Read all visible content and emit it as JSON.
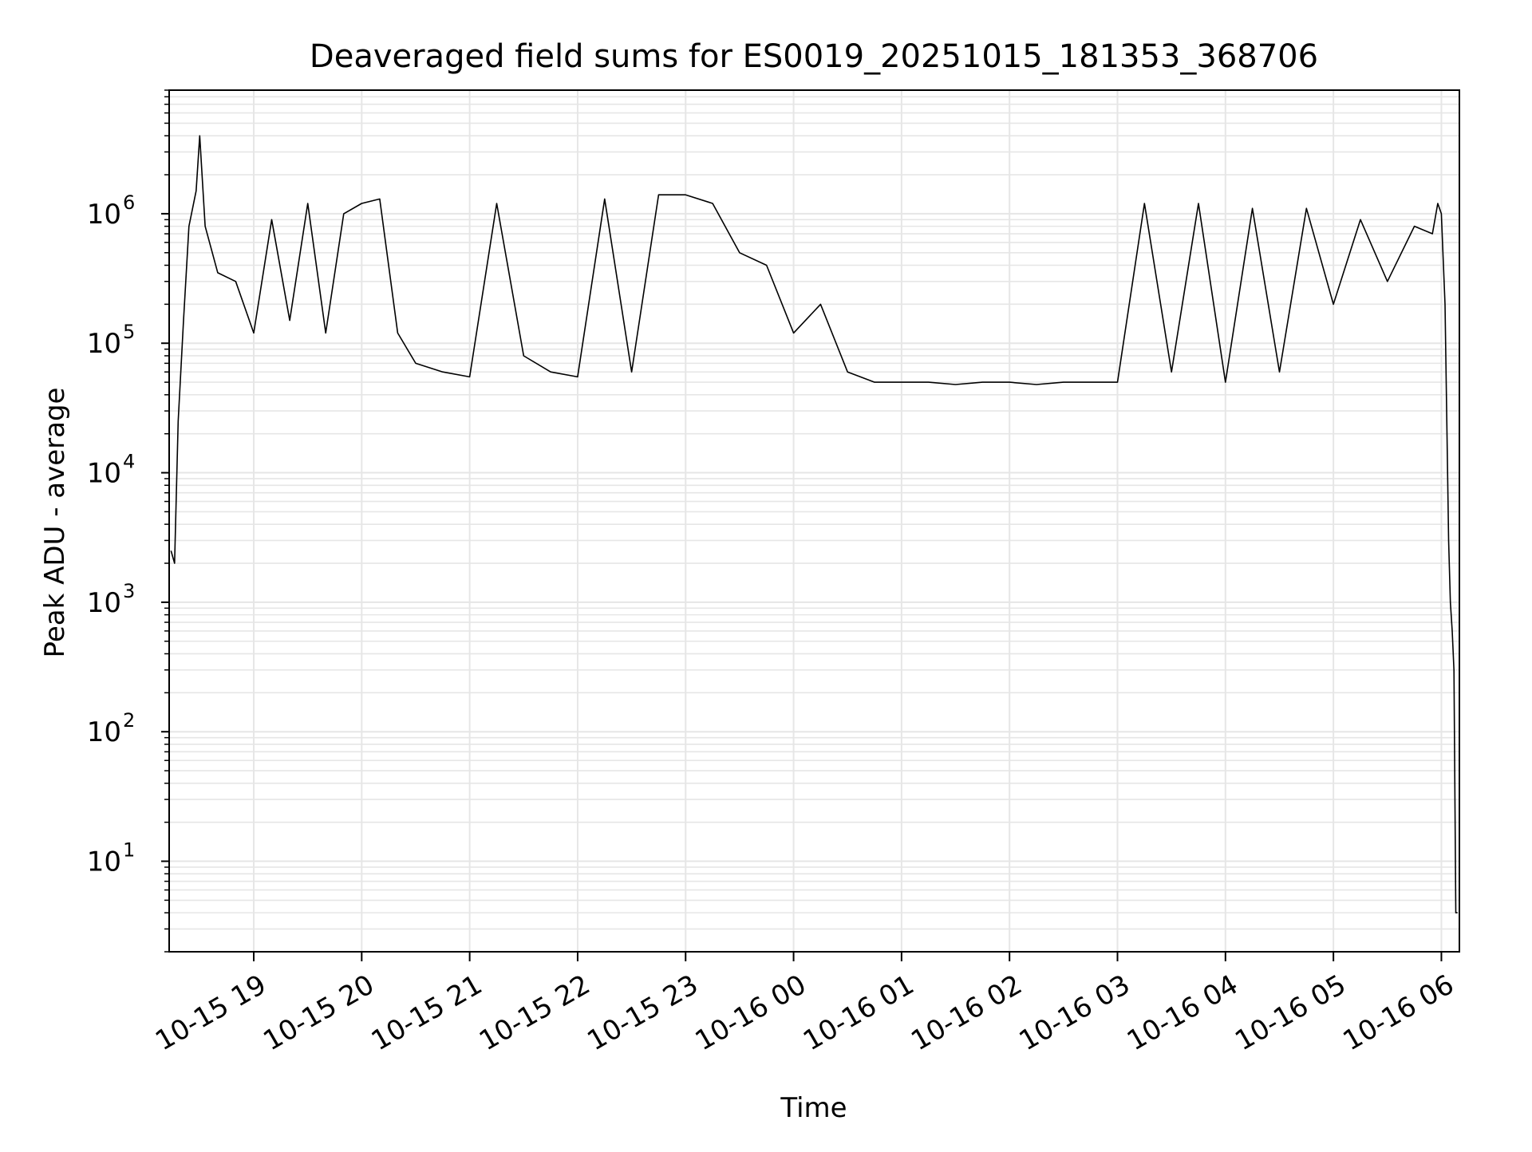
{
  "chart_data": {
    "type": "line",
    "title": "Deaveraged field sums for ES0019_20251015_181353_368706",
    "xlabel": "Time",
    "ylabel": "Peak ADU - average",
    "yscale": "log",
    "grid": true,
    "legend": "none",
    "colors": {
      "line": "#000000",
      "grid": "#e6e6e6",
      "axes": "#000000"
    },
    "xlim": [
      "2025-10-15 18:13",
      "2025-10-16 06:10"
    ],
    "ylim": [
      2,
      9000000
    ],
    "x_ticks": [
      {
        "t": "2025-10-15 19:00",
        "label": "10-15 19"
      },
      {
        "t": "2025-10-15 20:00",
        "label": "10-15 20"
      },
      {
        "t": "2025-10-15 21:00",
        "label": "10-15 21"
      },
      {
        "t": "2025-10-15 22:00",
        "label": "10-15 22"
      },
      {
        "t": "2025-10-15 23:00",
        "label": "10-15 23"
      },
      {
        "t": "2025-10-16 00:00",
        "label": "10-16 00"
      },
      {
        "t": "2025-10-16 01:00",
        "label": "10-16 01"
      },
      {
        "t": "2025-10-16 02:00",
        "label": "10-16 02"
      },
      {
        "t": "2025-10-16 03:00",
        "label": "10-16 03"
      },
      {
        "t": "2025-10-16 04:00",
        "label": "10-16 04"
      },
      {
        "t": "2025-10-16 05:00",
        "label": "10-16 05"
      },
      {
        "t": "2025-10-16 06:00",
        "label": "10-16 06"
      }
    ],
    "y_ticks": [
      {
        "v": 10,
        "label": "10",
        "exp": "1"
      },
      {
        "v": 100,
        "label": "10",
        "exp": "2"
      },
      {
        "v": 1000,
        "label": "10",
        "exp": "3"
      },
      {
        "v": 10000,
        "label": "10",
        "exp": "4"
      },
      {
        "v": 100000,
        "label": "10",
        "exp": "5"
      },
      {
        "v": 1000000,
        "label": "10",
        "exp": "6"
      }
    ],
    "series": [
      {
        "x": [
          "2025-10-15 18:14",
          "2025-10-15 18:16",
          "2025-10-15 18:18",
          "2025-10-15 18:21",
          "2025-10-15 18:24",
          "2025-10-15 18:28",
          "2025-10-15 18:30",
          "2025-10-15 18:33",
          "2025-10-15 18:40",
          "2025-10-15 18:50",
          "2025-10-15 19:00",
          "2025-10-15 19:10",
          "2025-10-15 19:20",
          "2025-10-15 19:30",
          "2025-10-15 19:40",
          "2025-10-15 19:50",
          "2025-10-15 20:00",
          "2025-10-15 20:10",
          "2025-10-15 20:20",
          "2025-10-15 20:30",
          "2025-10-15 20:45",
          "2025-10-15 21:00",
          "2025-10-15 21:15",
          "2025-10-15 21:30",
          "2025-10-15 21:45",
          "2025-10-15 22:00",
          "2025-10-15 22:15",
          "2025-10-15 22:30",
          "2025-10-15 22:45",
          "2025-10-15 23:00",
          "2025-10-15 23:15",
          "2025-10-15 23:30",
          "2025-10-15 23:45",
          "2025-10-16 00:00",
          "2025-10-16 00:15",
          "2025-10-16 00:30",
          "2025-10-16 00:45",
          "2025-10-16 01:00",
          "2025-10-16 01:15",
          "2025-10-16 01:30",
          "2025-10-16 01:45",
          "2025-10-16 02:00",
          "2025-10-16 02:15",
          "2025-10-16 02:30",
          "2025-10-16 02:45",
          "2025-10-16 03:00",
          "2025-10-16 03:15",
          "2025-10-16 03:30",
          "2025-10-16 03:45",
          "2025-10-16 04:00",
          "2025-10-16 04:15",
          "2025-10-16 04:30",
          "2025-10-16 04:45",
          "2025-10-16 05:00",
          "2025-10-16 05:15",
          "2025-10-16 05:30",
          "2025-10-16 05:45",
          "2025-10-16 05:55",
          "2025-10-16 05:58",
          "2025-10-16 06:00",
          "2025-10-16 06:02",
          "2025-10-16 06:04",
          "2025-10-16 06:05",
          "2025-10-16 06:06",
          "2025-10-16 06:07",
          "2025-10-16 06:08",
          "2025-10-16 06:09"
        ],
        "y": [
          2500,
          2000,
          25000,
          150000,
          800000,
          1500000,
          4000000,
          800000,
          350000,
          300000,
          120000,
          900000,
          150000,
          1200000,
          120000,
          1000000,
          1200000,
          1300000,
          120000,
          70000,
          60000,
          55000,
          1200000,
          80000,
          60000,
          55000,
          1300000,
          60000,
          1400000,
          1400000,
          1200000,
          500000,
          400000,
          120000,
          200000,
          60000,
          50000,
          50000,
          50000,
          48000,
          50000,
          50000,
          48000,
          50000,
          50000,
          50000,
          1200000,
          60000,
          1200000,
          50000,
          1100000,
          60000,
          1100000,
          200000,
          900000,
          300000,
          800000,
          700000,
          1200000,
          1000000,
          200000,
          3000,
          1000,
          600,
          300,
          4,
          4
        ]
      }
    ]
  }
}
